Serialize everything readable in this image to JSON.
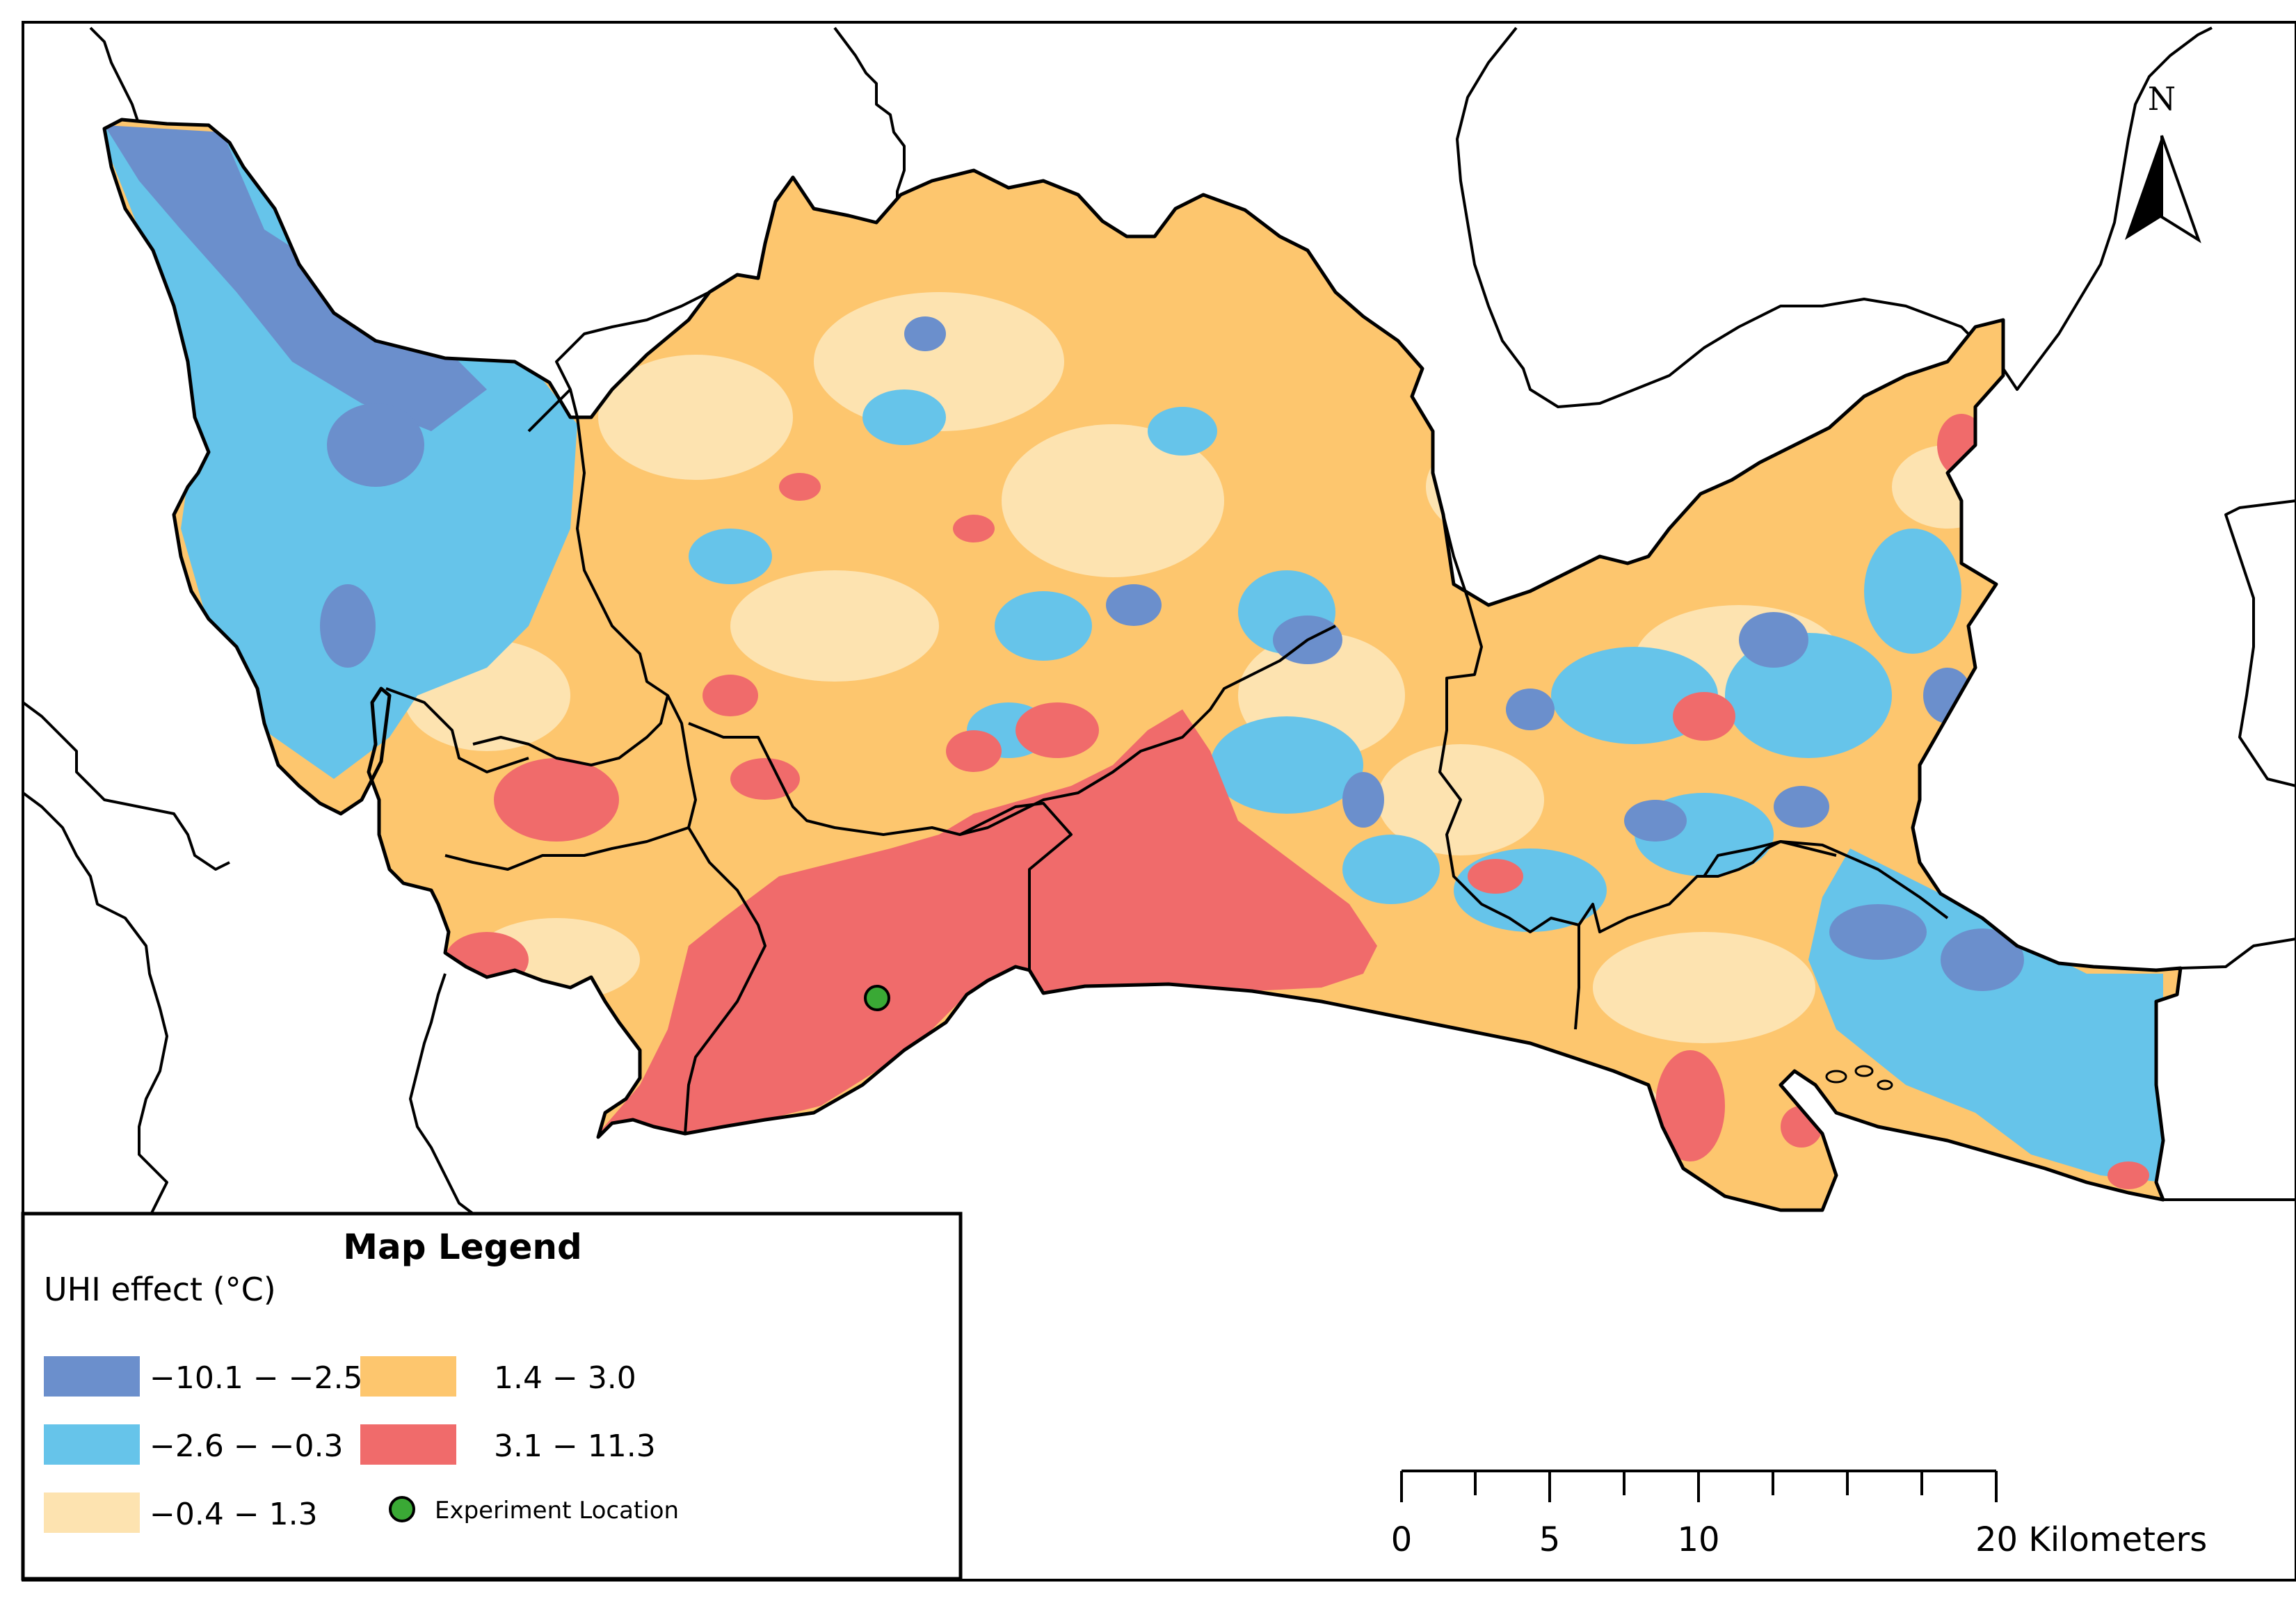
{
  "legend": {
    "title": "Map Legend",
    "subtitle": "UHI effect (°C)",
    "classes": [
      {
        "label": "−10.1 − −2.5",
        "color": "#6b8fcc"
      },
      {
        "label": "−2.6 − −0.3",
        "color": "#66c4ea"
      },
      {
        "label": "−0.4 − 1.3",
        "color": "#fde3b0"
      },
      {
        "label": "1.4 − 3.0",
        "color": "#fdc66e"
      },
      {
        "label": "3.1 − 11.3",
        "color": "#f06b6b"
      }
    ],
    "point": {
      "label": "Experiment Location",
      "color": "#3aa935"
    }
  },
  "north_arrow": {
    "label": "N"
  },
  "scale_bar": {
    "ticks": [
      "0",
      "5",
      "10",
      "20 Kilometers"
    ]
  }
}
